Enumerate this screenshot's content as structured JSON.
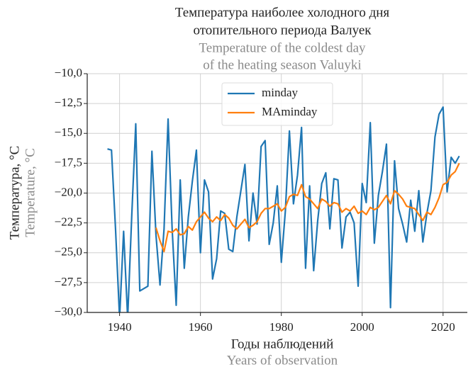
{
  "chart_data": {
    "type": "line",
    "title": [
      "Температура наиболее холодного дня",
      "отопительного периода  Валуек"
    ],
    "subtitle": [
      "Temperature of the coldest day",
      " of the heating season Valuyki"
    ],
    "ylabel": [
      "Температура, °С",
      "Temperature, °C"
    ],
    "xlabel": [
      "Годы наблюдений",
      "Years of observation"
    ],
    "xlim": [
      1932,
      2026
    ],
    "ylim": [
      -30,
      -10
    ],
    "xticks": [
      1940,
      1960,
      1980,
      2000,
      2020
    ],
    "yticks": [
      {
        "value": -30,
        "label": "−30,0"
      },
      {
        "value": -27.5,
        "label": "−27,5"
      },
      {
        "value": -25,
        "label": "−25,0"
      },
      {
        "value": -22.5,
        "label": "−22,5"
      },
      {
        "value": -20,
        "label": "−20,0"
      },
      {
        "value": -17.5,
        "label": "−17,5"
      },
      {
        "value": -15,
        "label": "−15,0"
      },
      {
        "value": -12.5,
        "label": "−12,5"
      },
      {
        "value": -10,
        "label": "−10,0"
      }
    ],
    "grid": true,
    "legend": "upper center",
    "series": [
      {
        "name": "minday",
        "color": "#1f77b4",
        "x": [
          1937,
          1938,
          1939,
          1940,
          1941,
          1942,
          1943,
          1944,
          1945,
          1946,
          1947,
          1948,
          1949,
          1950,
          1951,
          1952,
          1953,
          1954,
          1955,
          1956,
          1957,
          1958,
          1959,
          1960,
          1961,
          1962,
          1963,
          1964,
          1965,
          1966,
          1967,
          1968,
          1969,
          1970,
          1971,
          1972,
          1973,
          1974,
          1975,
          1976,
          1977,
          1978,
          1979,
          1980,
          1981,
          1982,
          1983,
          1984,
          1985,
          1986,
          1987,
          1988,
          1989,
          1990,
          1991,
          1992,
          1993,
          1994,
          1995,
          1996,
          1997,
          1998,
          1999,
          2000,
          2001,
          2002,
          2003,
          2004,
          2005,
          2006,
          2007,
          2008,
          2009,
          2010,
          2011,
          2012,
          2013,
          2014,
          2015,
          2016,
          2017,
          2018,
          2019,
          2020,
          2021,
          2022,
          2023,
          2024
        ],
        "values": [
          -16.3,
          -16.4,
          -23,
          -30.5,
          -23.2,
          -30.5,
          -22,
          -14.2,
          -28.2,
          -28,
          -27.8,
          -16.5,
          -23.5,
          -27.7,
          -23,
          -13.8,
          -23,
          -29.4,
          -18.9,
          -26.3,
          -22,
          -19,
          -16.4,
          -25,
          -18.9,
          -19.9,
          -27.2,
          -25.5,
          -21.5,
          -21.7,
          -24.7,
          -24.9,
          -22,
          -19.8,
          -17.6,
          -24,
          -20,
          -22.6,
          -16.1,
          -15.6,
          -24.3,
          -22.5,
          -19.4,
          -25.8,
          -21.5,
          -14.8,
          -20.9,
          -18.5,
          -14.5,
          -26.3,
          -19.4,
          -26.5,
          -22.3,
          -19.2,
          -18.3,
          -23,
          -18.8,
          -18.9,
          -24.6,
          -22,
          -21.6,
          -22.5,
          -27.8,
          -19.2,
          -20.8,
          -14.1,
          -24.2,
          -20.2,
          -18.2,
          -15.9,
          -29.6,
          -17.3,
          -21.3,
          -22.6,
          -24.1,
          -20.6,
          -23.2,
          -19.8,
          -24.1,
          -21.7,
          -19.8,
          -15.3,
          -13.4,
          -12.8,
          -19.9,
          -17,
          -17.5,
          -16.9
        ]
      },
      {
        "name": "MAminday",
        "color": "#ff7f0e",
        "x": [
          1949,
          1950,
          1951,
          1952,
          1953,
          1954,
          1955,
          1956,
          1957,
          1958,
          1959,
          1960,
          1961,
          1962,
          1963,
          1964,
          1965,
          1966,
          1967,
          1968,
          1969,
          1970,
          1971,
          1972,
          1973,
          1974,
          1975,
          1976,
          1977,
          1978,
          1979,
          1980,
          1981,
          1982,
          1983,
          1984,
          1985,
          1986,
          1987,
          1988,
          1989,
          1990,
          1991,
          1992,
          1993,
          1994,
          1995,
          1996,
          1997,
          1998,
          1999,
          2000,
          2001,
          2002,
          2003,
          2004,
          2005,
          2006,
          2007,
          2008,
          2009,
          2010,
          2011,
          2012,
          2013,
          2014,
          2015,
          2016,
          2017,
          2018,
          2019,
          2020,
          2021,
          2022,
          2023,
          2024
        ],
        "values": [
          -22.9,
          -24,
          -24.9,
          -23.2,
          -23.3,
          -23,
          -23.5,
          -23.4,
          -22.8,
          -23.1,
          -22.4,
          -22,
          -21.6,
          -22.1,
          -22.4,
          -22,
          -22.3,
          -21.8,
          -22.1,
          -22.7,
          -23,
          -22.6,
          -22.2,
          -22.9,
          -22.7,
          -22.4,
          -21.7,
          -21.3,
          -21.3,
          -21.1,
          -20.9,
          -21.5,
          -21.2,
          -20.3,
          -20.1,
          -20.2,
          -19.3,
          -20.3,
          -20.5,
          -20.9,
          -21.3,
          -20.5,
          -20.7,
          -21.1,
          -20.8,
          -20.9,
          -21.6,
          -21.3,
          -21.5,
          -21.1,
          -21.7,
          -21.5,
          -21.8,
          -21.2,
          -21.4,
          -21.2,
          -20.7,
          -20.2,
          -20.9,
          -19.8,
          -20.1,
          -20.5,
          -21.1,
          -21.2,
          -21.3,
          -21.8,
          -22.3,
          -21.6,
          -21.8,
          -21.2,
          -20.4,
          -19.3,
          -19.1,
          -18.5,
          -18.2,
          -17.5
        ]
      }
    ]
  }
}
